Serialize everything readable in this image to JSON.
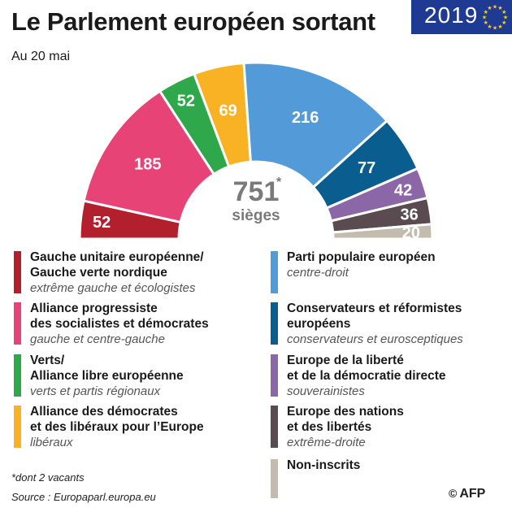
{
  "header": {
    "title": "Le Parlement européen sortant",
    "subtitle": "Au 20 mai",
    "badge_year": "2019"
  },
  "chart_data": {
    "type": "pie",
    "shape": "semicircle",
    "total": 751,
    "total_marker": "*",
    "total_label": "sièges",
    "slices": [
      {
        "value": 52,
        "label": "52",
        "color": "#b2202e"
      },
      {
        "value": 185,
        "label": "185",
        "color": "#e84377"
      },
      {
        "value": 52,
        "label": "52",
        "color": "#2ea84a"
      },
      {
        "value": 69,
        "label": "69",
        "color": "#f9b224"
      },
      {
        "value": 216,
        "label": "216",
        "color": "#539bd8"
      },
      {
        "value": 77,
        "label": "77",
        "color": "#0a5e8f"
      },
      {
        "value": 42,
        "label": "42",
        "color": "#8b67a8"
      },
      {
        "value": 36,
        "label": "36",
        "color": "#5a4b50"
      },
      {
        "value": 20,
        "label": "20",
        "color": "#c3bbae"
      }
    ]
  },
  "legend": {
    "left": [
      {
        "name": "Gauche unitaire européenne/\nGauche verte nordique",
        "desc": "extrême gauche et écologistes",
        "color": "#b2202e"
      },
      {
        "name": "Alliance progressiste\ndes socialistes et démocrates",
        "desc": "gauche et centre-gauche",
        "color": "#e84377"
      },
      {
        "name": "Verts/\nAlliance libre européenne",
        "desc": "verts et partis régionaux",
        "color": "#2ea84a"
      },
      {
        "name": "Alliance des démocrates\net des libéraux pour l’Europe",
        "desc": "libéraux",
        "color": "#f9b224"
      }
    ],
    "right": [
      {
        "name": "Parti populaire européen",
        "desc": "centre-droit",
        "color": "#539bd8"
      },
      {
        "name": "Conservateurs et réformistes\neuropéens",
        "desc": "conservateurs et eurosceptiques",
        "color": "#0a5e8f"
      },
      {
        "name": "Europe de la liberté\net de la démocratie directe",
        "desc": "souverainistes",
        "color": "#8b67a8"
      },
      {
        "name": "Europe des nations\net des libertés",
        "desc": "extrême-droite",
        "color": "#5a4b50"
      },
      {
        "name": "Non-inscrits",
        "desc": "",
        "color": "#c3bbae"
      }
    ]
  },
  "footer": {
    "footnote": "*dont 2 vacants",
    "source": "Source : Europaparl.europa.eu",
    "logo": "AFP",
    "logo_icon": "copyright-icon"
  }
}
